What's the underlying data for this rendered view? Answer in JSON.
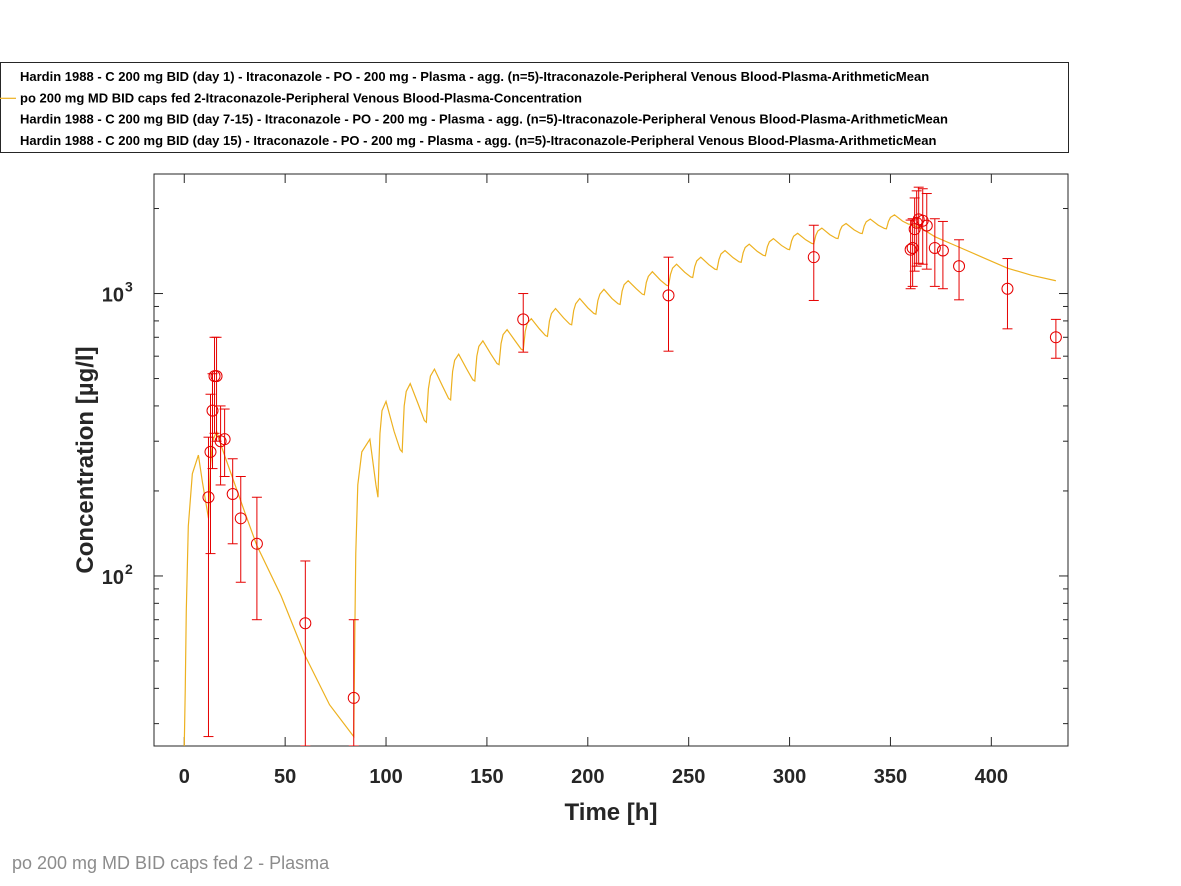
{
  "footer_caption": "po 200 mg MD BID caps fed 2 - Plasma",
  "chart_data": {
    "type": "line",
    "xlabel": "Time [h]",
    "ylabel": "Concentration [µg/l]",
    "xlim": [
      -15,
      438
    ],
    "ylim": [
      25,
      2650
    ],
    "yscale": "log",
    "x_ticks": [
      0,
      50,
      100,
      150,
      200,
      250,
      300,
      350,
      400
    ],
    "y_tick_labels": [
      {
        "base": "10",
        "exp": "2",
        "value": 100
      },
      {
        "base": "10",
        "exp": "3",
        "value": 1000
      }
    ],
    "grid": false,
    "legend_placement": "top (outside plot)",
    "colors": {
      "observed": "#e60000",
      "simulated": "#edb120"
    },
    "legend": [
      {
        "label": "Hardin 1988 - C 200 mg BID (day 1) - Itraconazole - PO - 200 mg - Plasma - agg. (n=5)-Itraconazole-Peripheral Venous Blood-Plasma-ArithmeticMean",
        "style": "none"
      },
      {
        "label": "po 200 mg MD BID caps fed 2-Itraconazole-Peripheral Venous Blood-Plasma-Concentration",
        "style": "line"
      },
      {
        "label": "Hardin 1988 - C 200 mg BID (day 7-15) - Itraconazole - PO - 200 mg - Plasma - agg. (n=5)-Itraconazole-Peripheral Venous Blood-Plasma-ArithmeticMean",
        "style": "none"
      },
      {
        "label": "Hardin 1988 - C 200 mg BID (day 15) - Itraconazole - PO - 200 mg - Plasma - agg. (n=5)-Itraconazole-Peripheral Venous Blood-Plasma-ArithmeticMean",
        "style": "none"
      }
    ],
    "simulated": {
      "name": "po 200 mg MD BID caps fed 2-Itraconazole-Peripheral Venous Blood-Plasma-Concentration",
      "x": [
        0,
        0.5,
        1,
        2,
        4,
        7,
        9,
        12,
        12.5,
        13,
        14,
        16,
        19,
        21,
        24,
        30,
        36,
        48,
        60,
        72,
        84,
        84.5,
        85,
        86,
        88,
        92,
        95,
        96,
        96.5,
        97,
        98,
        100,
        104,
        107,
        108,
        108.5,
        109,
        110,
        112,
        116,
        119,
        120,
        120.5,
        121,
        122,
        124,
        128,
        131,
        132,
        132.5,
        133,
        134,
        136,
        140,
        143,
        144,
        144.5,
        145,
        146,
        148,
        152,
        155,
        156,
        156.5,
        157,
        158,
        160,
        164,
        167,
        168,
        168.5,
        169,
        170,
        172,
        176,
        179,
        180,
        180.5,
        181,
        182,
        184,
        188,
        191,
        192,
        192.5,
        193,
        194,
        196,
        200,
        203,
        204,
        204.5,
        205,
        206,
        208,
        212,
        215,
        216,
        216.5,
        217,
        218,
        220,
        224,
        227,
        228,
        228.5,
        229,
        230,
        232,
        236,
        239,
        240,
        240.5,
        241,
        242,
        244,
        248,
        251,
        252,
        252.5,
        253,
        254,
        256,
        260,
        263,
        264,
        264.5,
        265,
        266,
        268,
        272,
        275,
        276,
        276.5,
        277,
        278,
        280,
        284,
        287,
        288,
        288.5,
        289,
        290,
        292,
        296,
        299,
        300,
        300.5,
        301,
        302,
        304,
        308,
        311,
        312,
        312.5,
        313,
        314,
        316,
        320,
        323,
        324,
        324.5,
        325,
        326,
        328,
        332,
        335,
        336,
        336.5,
        337,
        338,
        340,
        344,
        347,
        348,
        348.5,
        349,
        350,
        352,
        356,
        359,
        360,
        366,
        372,
        384,
        396,
        408,
        420,
        432
      ],
      "y": [
        25,
        40,
        75,
        150,
        230,
        268,
        215,
        160,
        200,
        245,
        300,
        325,
        280,
        255,
        222,
        168,
        128,
        85,
        52,
        35,
        27,
        60,
        120,
        210,
        275,
        305,
        210,
        190,
        255,
        320,
        385,
        415,
        325,
        280,
        275,
        335,
        400,
        450,
        480,
        405,
        355,
        350,
        405,
        460,
        510,
        540,
        470,
        425,
        420,
        475,
        530,
        580,
        610,
        540,
        495,
        490,
        545,
        600,
        650,
        680,
        610,
        565,
        560,
        610,
        665,
        715,
        745,
        680,
        635,
        630,
        680,
        735,
        785,
        815,
        750,
        710,
        705,
        750,
        800,
        850,
        885,
        820,
        780,
        775,
        820,
        870,
        920,
        960,
        890,
        850,
        845,
        895,
        945,
        995,
        1035,
        960,
        920,
        915,
        965,
        1020,
        1075,
        1110,
        1040,
        995,
        990,
        1040,
        1095,
        1150,
        1195,
        1115,
        1070,
        1065,
        1115,
        1170,
        1230,
        1270,
        1190,
        1145,
        1140,
        1190,
        1245,
        1305,
        1345,
        1265,
        1220,
        1215,
        1265,
        1320,
        1380,
        1420,
        1340,
        1295,
        1290,
        1340,
        1395,
        1455,
        1495,
        1410,
        1365,
        1360,
        1410,
        1465,
        1525,
        1565,
        1480,
        1435,
        1430,
        1480,
        1535,
        1595,
        1635,
        1550,
        1505,
        1500,
        1550,
        1605,
        1665,
        1705,
        1615,
        1570,
        1565,
        1615,
        1670,
        1730,
        1770,
        1680,
        1635,
        1630,
        1680,
        1735,
        1795,
        1835,
        1745,
        1700,
        1695,
        1745,
        1800,
        1860,
        1900,
        1805,
        1760,
        1760,
        1690,
        1590,
        1460,
        1340,
        1230,
        1160,
        1110
      ]
    },
    "observed": {
      "marker": "open circle",
      "points": [
        {
          "x": 12,
          "y": 190,
          "lo": 27,
          "hi": 310
        },
        {
          "x": 13,
          "y": 275,
          "lo": 120,
          "hi": 440
        },
        {
          "x": 14,
          "y": 385,
          "lo": 240,
          "hi": 520
        },
        {
          "x": 15,
          "y": 510,
          "lo": 320,
          "hi": 700
        },
        {
          "x": 16,
          "y": 510,
          "lo": 300,
          "hi": 700
        },
        {
          "x": 18,
          "y": 300,
          "lo": 210,
          "hi": 400
        },
        {
          "x": 20,
          "y": 305,
          "lo": 225,
          "hi": 390
        },
        {
          "x": 24,
          "y": 195,
          "lo": 130,
          "hi": 260
        },
        {
          "x": 28,
          "y": 160,
          "lo": 95,
          "hi": 225
        },
        {
          "x": 36,
          "y": 130,
          "lo": 70,
          "hi": 190
        },
        {
          "x": 60,
          "y": 68,
          "lo": 23,
          "hi": 113
        },
        {
          "x": 84,
          "y": 37,
          "lo": 22,
          "hi": 70
        },
        {
          "x": 168,
          "y": 810,
          "lo": 620,
          "hi": 1000
        },
        {
          "x": 240,
          "y": 985,
          "lo": 625,
          "hi": 1345
        },
        {
          "x": 312,
          "y": 1345,
          "lo": 945,
          "hi": 1745
        },
        {
          "x": 360,
          "y": 1430,
          "lo": 1040,
          "hi": 1820
        },
        {
          "x": 361,
          "y": 1450,
          "lo": 1060,
          "hi": 1840
        },
        {
          "x": 362,
          "y": 1690,
          "lo": 1200,
          "hi": 2180
        },
        {
          "x": 363,
          "y": 1780,
          "lo": 1250,
          "hi": 2310
        },
        {
          "x": 364,
          "y": 1830,
          "lo": 1280,
          "hi": 2380
        },
        {
          "x": 366,
          "y": 1810,
          "lo": 1270,
          "hi": 2350
        },
        {
          "x": 368,
          "y": 1740,
          "lo": 1220,
          "hi": 2260
        },
        {
          "x": 372,
          "y": 1450,
          "lo": 1060,
          "hi": 1840
        },
        {
          "x": 376,
          "y": 1420,
          "lo": 1040,
          "hi": 1800
        },
        {
          "x": 384,
          "y": 1250,
          "lo": 950,
          "hi": 1550
        },
        {
          "x": 408,
          "y": 1040,
          "lo": 750,
          "hi": 1330
        },
        {
          "x": 432,
          "y": 700,
          "lo": 590,
          "hi": 810
        }
      ]
    }
  }
}
